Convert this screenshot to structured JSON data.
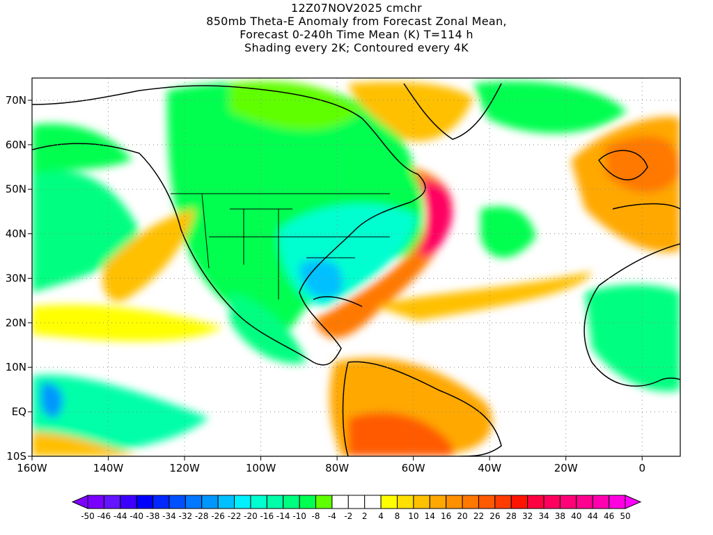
{
  "title_lines": [
    "12Z07NOV2025 cmchr",
    "850mb Theta-E Anomaly from Forecast Zonal Mean,",
    "Forecast 0-240h Time Mean (K) T=114 h",
    "Shading every 2K; Contoured every 4K"
  ],
  "axes": {
    "lon_labels": [
      "160W",
      "140W",
      "120W",
      "100W",
      "80W",
      "60W",
      "40W",
      "20W",
      "0"
    ],
    "lon_values": [
      -160,
      -140,
      -120,
      -100,
      -80,
      -60,
      -40,
      -20,
      0
    ],
    "lat_labels": [
      "70N",
      "60N",
      "50N",
      "40N",
      "30N",
      "20N",
      "10N",
      "EQ",
      "10S"
    ],
    "lat_values": [
      70,
      60,
      50,
      40,
      30,
      20,
      10,
      0,
      -10
    ],
    "lon_range": [
      -160,
      10
    ],
    "lat_range": [
      -10,
      75
    ]
  },
  "colorbar": {
    "labels": [
      "-50",
      "-46",
      "-44",
      "-40",
      "-38",
      "-34",
      "-32",
      "-28",
      "-26",
      "-22",
      "-20",
      "-16",
      "-14",
      "-10",
      "-8",
      "-4",
      "-2",
      "2",
      "4",
      "8",
      "10",
      "14",
      "16",
      "20",
      "22",
      "26",
      "28",
      "32",
      "34",
      "38",
      "40",
      "44",
      "46",
      "50"
    ],
    "colors": [
      "#7a00ff",
      "#6414ff",
      "#3c00ff",
      "#0000ff",
      "#0028ff",
      "#0050ff",
      "#0078ff",
      "#0096ff",
      "#00c0ff",
      "#00f0ff",
      "#00ffd0",
      "#00ffa8",
      "#00ff80",
      "#00ff50",
      "#60ff00",
      "#ffffff",
      "#ffffff",
      "#ffffff",
      "#ffff00",
      "#ffe000",
      "#ffc000",
      "#ffa800",
      "#ff9000",
      "#ff7800",
      "#ff5a00",
      "#ff3c00",
      "#ff1400",
      "#ff0040",
      "#ff0060",
      "#ff0078",
      "#ff0090",
      "#ff00b0",
      "#ff00e0"
    ],
    "low_extend_color": "#8000ff",
    "high_extend_color": "#ff00ff"
  }
}
